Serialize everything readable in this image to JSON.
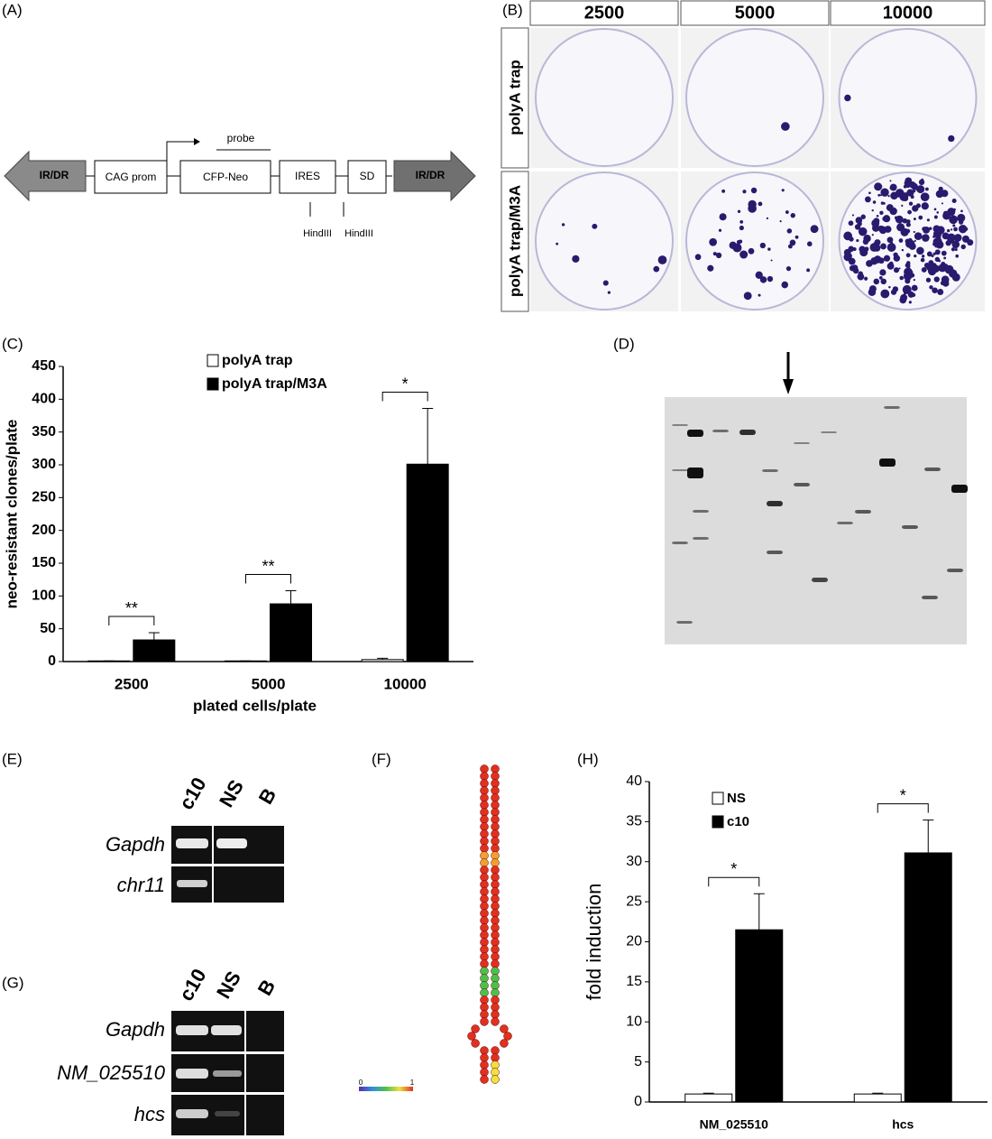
{
  "panels": [
    "(A)",
    "(B)",
    "(C)",
    "(D)",
    "(E)",
    "(F)",
    "(G)",
    "(H)"
  ],
  "diagram": {
    "left_arrow": "IR/DR",
    "boxes": [
      "CAG prom",
      "CFP-Neo",
      "IRES",
      "SD"
    ],
    "right_arrow": "IR/DR",
    "probe": "probe",
    "sites": [
      "HindIII",
      "HindIII"
    ]
  },
  "plates": {
    "columns": [
      "2500",
      "5000",
      "10000"
    ],
    "rows": [
      "polyA trap",
      "polyA trap/M3A"
    ]
  },
  "gel_e": {
    "lanes": [
      "c10",
      "NS",
      "B"
    ],
    "rows": [
      "Gapdh",
      "chr11"
    ]
  },
  "gel_g": {
    "lanes": [
      "c10",
      "NS",
      "B"
    ],
    "rows": [
      "Gapdh",
      "NM_025510",
      "hcs"
    ]
  },
  "colorbar": {
    "ticks": [
      0,
      1
    ]
  },
  "chart_data": [
    {
      "type": "bar",
      "x_label": "plated cells/plate",
      "y_label": "neo-resistant clones/plate",
      "categories": [
        "2500",
        "5000",
        "10000"
      ],
      "series": [
        {
          "name": "polyA trap",
          "color": "#ffffff",
          "values": [
            1,
            1,
            3
          ],
          "errors": [
            0,
            0,
            2
          ]
        },
        {
          "name": "polyA trap/M3A",
          "color": "#000000",
          "values": [
            33,
            88,
            301
          ],
          "errors": [
            11,
            20,
            85
          ]
        }
      ],
      "annotations": [
        "**",
        "**",
        "*"
      ],
      "ylim": [
        0,
        450
      ],
      "yticks": [
        0,
        50,
        100,
        150,
        200,
        250,
        300,
        350,
        400,
        450
      ],
      "legend": "top"
    },
    {
      "type": "bar",
      "y_label": "fold induction",
      "categories": [
        "NM_025510",
        "hcs"
      ],
      "series": [
        {
          "name": "NS",
          "color": "#ffffff",
          "values": [
            1,
            1
          ],
          "errors": [
            0.1,
            0.1
          ]
        },
        {
          "name": "c10",
          "color": "#000000",
          "values": [
            21.5,
            31.1
          ],
          "errors": [
            4.5,
            4.1
          ]
        }
      ],
      "annotations": [
        "*",
        "*"
      ],
      "ylim": [
        0,
        40
      ],
      "yticks": [
        0,
        5,
        10,
        15,
        20,
        25,
        30,
        35,
        40
      ],
      "legend": "top"
    }
  ]
}
